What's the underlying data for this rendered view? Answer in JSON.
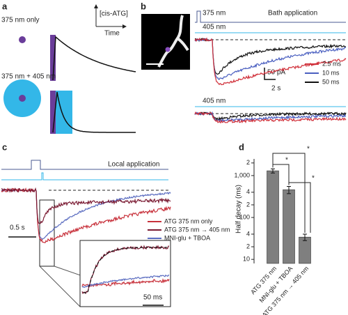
{
  "panels": {
    "a": {
      "label": "a",
      "only": "375 nm only",
      "both": "375 nm + 405 nm",
      "yaxis": "[cis-ATG]",
      "xaxis": "Time"
    },
    "b": {
      "label": "b",
      "uv": "375 nm",
      "mode": "Bath application",
      "violet": "405 nm",
      "violet2": "405 nm",
      "scale_y": "50 pA",
      "scale_x": "2 s",
      "legend": [
        {
          "name": "2.5 ms",
          "color": "#d0303a"
        },
        {
          "name": "10 ms",
          "color": "#4a5fc0"
        },
        {
          "name": "50 ms",
          "color": "#111111"
        }
      ]
    },
    "c": {
      "label": "c",
      "mode": "Local application",
      "scale_x": "0.5 s",
      "inset_scale": "50 ms",
      "legend": [
        {
          "name": "ATG 375 nm only",
          "color": "#c8323c"
        },
        {
          "name": "ATG 375 nm → 405 nm",
          "color": "#7a1a32"
        },
        {
          "name": "MNI-glu + TBOA",
          "color": "#5a6cc0"
        }
      ]
    },
    "d": {
      "label": "d",
      "significance": [
        "*",
        "*",
        "*"
      ]
    }
  },
  "chart_data": {
    "type": "bar",
    "log": true,
    "ylabel": "Half decay (ms)",
    "categories": [
      "ATG 375 nm",
      "MNI-glu + TBOA",
      "ATG 375 nm → 405 nm"
    ],
    "values": [
      1300,
      460,
      34
    ],
    "errors": [
      150,
      90,
      6
    ],
    "color": "#7f7f7f",
    "ylim": [
      8,
      2500
    ],
    "yticks": [
      10,
      {
        "value": 20,
        "label": "2"
      },
      {
        "value": 40,
        "label": "4"
      },
      100,
      {
        "value": 200,
        "label": "2"
      },
      {
        "value": 400,
        "label": "4"
      },
      {
        "value": 1000,
        "label": "1,000"
      },
      {
        "value": 2000,
        "label": "2"
      }
    ]
  }
}
